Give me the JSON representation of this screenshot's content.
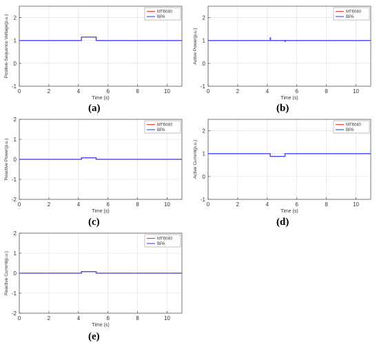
{
  "colors": {
    "MT6040": "#e8413c",
    "BPA": "#4b4ff0"
  },
  "x_ticks": [
    "0",
    "2",
    "4",
    "6",
    "8",
    "10"
  ],
  "y_ticks": [
    "-1",
    "0",
    "1",
    "2"
  ],
  "y_ticks_c": [
    "-2",
    "-1",
    "0",
    "1",
    "2"
  ],
  "chart_data": [
    {
      "type": "line",
      "panel": "a",
      "caption": "(a)",
      "xlabel": "Time (s)",
      "ylabel": "Positive-Sequence Voltage(p.u.)",
      "xlim": [
        0,
        11
      ],
      "ylim": [
        -1,
        2.5
      ],
      "grid": true,
      "legend": "top-right",
      "series": [
        {
          "name": "MT6040",
          "x": [
            0,
            4.2,
            4.2,
            5.2,
            5.2,
            11
          ],
          "y": [
            1,
            1,
            1.15,
            1.15,
            1,
            1
          ]
        },
        {
          "name": "BPA",
          "x": [
            0,
            4.2,
            4.2,
            5.2,
            5.2,
            11
          ],
          "y": [
            1,
            1,
            1.15,
            1.15,
            1,
            1
          ]
        }
      ]
    },
    {
      "type": "line",
      "panel": "b",
      "caption": "(b)",
      "xlabel": "Time (s)",
      "ylabel": "Active Power(p.u.)",
      "xlim": [
        0,
        11
      ],
      "ylim": [
        -1,
        2.5
      ],
      "grid": true,
      "legend": "top-right",
      "series": [
        {
          "name": "MT6040",
          "x": [
            0,
            4.2,
            4.2,
            4.22,
            4.22,
            5.2,
            5.2,
            5.22,
            5.22,
            11
          ],
          "y": [
            1,
            1,
            1.12,
            1.12,
            1,
            1,
            0.96,
            0.96,
            1,
            1
          ]
        },
        {
          "name": "BPA",
          "x": [
            0,
            4.2,
            4.2,
            4.22,
            4.22,
            5.2,
            5.2,
            5.22,
            5.22,
            11
          ],
          "y": [
            1,
            1,
            1.12,
            1.12,
            1,
            1,
            0.96,
            0.96,
            1,
            1
          ]
        }
      ]
    },
    {
      "type": "line",
      "panel": "c",
      "caption": "(c)",
      "xlabel": "Time (s)",
      "ylabel": "Reactive Power(p.u.)",
      "xlim": [
        0,
        11
      ],
      "ylim": [
        -2,
        2
      ],
      "grid": true,
      "legend": "top-right",
      "series": [
        {
          "name": "MT6040",
          "x": [
            0,
            4.2,
            4.2,
            5.2,
            5.2,
            11
          ],
          "y": [
            0,
            0,
            0.08,
            0.08,
            0,
            0
          ]
        },
        {
          "name": "BPA",
          "x": [
            0,
            4.2,
            4.2,
            5.2,
            5.2,
            11
          ],
          "y": [
            0,
            0,
            0.08,
            0.08,
            0,
            0
          ]
        }
      ]
    },
    {
      "type": "line",
      "panel": "d",
      "caption": "(d)",
      "xlabel": "Time (s)",
      "ylabel": "Active Current(p.u.)",
      "xlim": [
        0,
        11
      ],
      "ylim": [
        -1,
        2.5
      ],
      "grid": true,
      "legend": "top-right",
      "series": [
        {
          "name": "MT6040",
          "x": [
            0,
            4.2,
            4.2,
            5.2,
            5.2,
            11
          ],
          "y": [
            1,
            1,
            0.88,
            0.88,
            1,
            1
          ]
        },
        {
          "name": "BPA",
          "x": [
            0,
            4.2,
            4.2,
            5.2,
            5.2,
            11
          ],
          "y": [
            1,
            1,
            0.88,
            0.88,
            1,
            1
          ]
        }
      ]
    },
    {
      "type": "line",
      "panel": "e",
      "caption": "(e)",
      "xlabel": "Time (s)",
      "ylabel": "Reactive Current(p.u.)",
      "xlim": [
        0,
        11
      ],
      "ylim": [
        -2,
        2
      ],
      "grid": true,
      "legend": "top-right",
      "series": [
        {
          "name": "MT6040",
          "x": [
            0,
            4.2,
            4.2,
            5.2,
            5.2,
            11
          ],
          "y": [
            0,
            0,
            0.08,
            0.08,
            0,
            0
          ]
        },
        {
          "name": "BPA",
          "x": [
            0,
            4.2,
            4.2,
            5.2,
            5.2,
            11
          ],
          "y": [
            0,
            0,
            0.08,
            0.08,
            0,
            0
          ]
        }
      ]
    }
  ]
}
